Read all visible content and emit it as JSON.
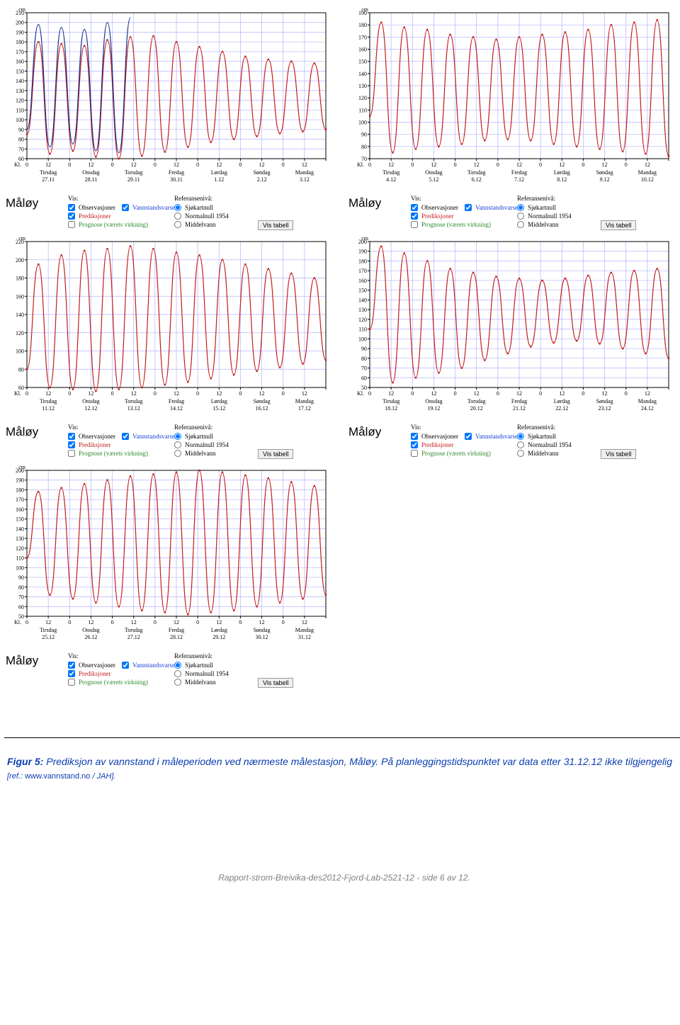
{
  "style": {
    "background_color": "#ffffff",
    "plot_background_color": "#ffffff",
    "grid_color": "#b3b3ff",
    "grid_stroke": 0.7,
    "axis_color": "#000000",
    "axis_stroke": 1.0,
    "series_pred_color": "#c41c1c",
    "series_obs_color": "#16338f",
    "series_stroke": 1.2,
    "marker_color": "#c41c1c",
    "marker_size": 2,
    "ylabel_fontsize": 8,
    "xlabel_fontsize": 8,
    "unit_label": "cm",
    "xaxis_prefix": "Kl.",
    "xaxis_tick_labels": [
      "0",
      "12",
      "0",
      "12",
      "0",
      "12",
      "0",
      "12",
      "0",
      "12",
      "0",
      "12",
      "0",
      "12"
    ]
  },
  "controls": {
    "vis_header": "Vis:",
    "ref_header": "Referansenivå:",
    "observasjoner": "Observasjoner",
    "vannstandsvarsel": "Vannstandsvarsel",
    "prediksjoner": "Prediksjoner",
    "prognose": "Prognose (værets virkning)",
    "sjokartnull": "Sjøkartnull",
    "normalnull": "Normalnull 1954",
    "middelvann": "Middelvann",
    "button": "Vis tabell",
    "obs_checked": true,
    "vann_checked": true,
    "pred_checked": true,
    "prog_checked": false,
    "ref_selected": "sjokartnull"
  },
  "station": "Måløy",
  "panels": [
    {
      "id": "p1",
      "ylim": [
        60,
        210
      ],
      "ytick_step": 10,
      "days": [
        {
          "w": "Tirsdag",
          "d": "27.11"
        },
        {
          "w": "Onsdag",
          "d": "28.11"
        },
        {
          "w": "Torsdag",
          "d": "29.11"
        },
        {
          "w": "Fredag",
          "d": "30.11"
        },
        {
          "w": "Lørdag",
          "d": "1.12"
        },
        {
          "w": "Søndag",
          "d": "2.12"
        },
        {
          "w": "Mandag",
          "d": "3.12"
        }
      ],
      "series_pred": [
        85,
        180,
        65,
        178,
        68,
        176,
        62,
        182,
        60,
        185,
        63,
        186,
        67,
        180,
        72,
        175,
        77,
        170,
        80,
        165,
        83,
        162,
        86,
        160,
        88,
        158,
        90
      ],
      "series_obs": [
        90,
        198,
        72,
        195,
        75,
        193,
        68,
        200,
        66,
        205
      ],
      "obs_extent": 8
    },
    {
      "id": "p2",
      "ylim": [
        70,
        190
      ],
      "ytick_step": 10,
      "days": [
        {
          "w": "Tirsdag",
          "d": "4.12"
        },
        {
          "w": "Onsdag",
          "d": "5.12"
        },
        {
          "w": "Torsdag",
          "d": "6.12"
        },
        {
          "w": "Fredag",
          "d": "7.12"
        },
        {
          "w": "Lørdag",
          "d": "8.12"
        },
        {
          "w": "Søndag",
          "d": "9.12"
        },
        {
          "w": "Mandag",
          "d": "10.12"
        }
      ],
      "series_pred": [
        105,
        182,
        75,
        178,
        78,
        176,
        80,
        172,
        82,
        170,
        85,
        168,
        86,
        170,
        85,
        172,
        82,
        174,
        80,
        176,
        78,
        180,
        76,
        182,
        74,
        184,
        72
      ],
      "series_obs": [],
      "obs_extent": 0
    },
    {
      "id": "p3",
      "ylim": [
        60,
        220
      ],
      "ytick_step": 20,
      "days": [
        {
          "w": "Tirsdag",
          "d": "11.12"
        },
        {
          "w": "Onsdag",
          "d": "12.12"
        },
        {
          "w": "Torsdag",
          "d": "13.12"
        },
        {
          "w": "Fredag",
          "d": "14.12"
        },
        {
          "w": "Lørdag",
          "d": "15.12"
        },
        {
          "w": "Søndag",
          "d": "16.12"
        },
        {
          "w": "Mandag",
          "d": "17.12"
        }
      ],
      "series_pred": [
        80,
        195,
        60,
        205,
        58,
        210,
        56,
        212,
        58,
        215,
        60,
        212,
        63,
        208,
        66,
        205,
        70,
        200,
        74,
        195,
        78,
        190,
        82,
        185,
        86,
        180,
        90
      ],
      "series_obs": [],
      "obs_extent": 0
    },
    {
      "id": "p4",
      "ylim": [
        50,
        200
      ],
      "ytick_step": 10,
      "days": [
        {
          "w": "Tirsdag",
          "d": "18.12"
        },
        {
          "w": "Onsdag",
          "d": "19.12"
        },
        {
          "w": "Torsdag",
          "d": "20.12"
        },
        {
          "w": "Fredag",
          "d": "21.12"
        },
        {
          "w": "Lørdag",
          "d": "22.12"
        },
        {
          "w": "Søndag",
          "d": "23.12"
        },
        {
          "w": "Mandag",
          "d": "24.12"
        }
      ],
      "series_pred": [
        110,
        195,
        55,
        188,
        60,
        180,
        65,
        172,
        70,
        168,
        78,
        164,
        85,
        162,
        92,
        160,
        96,
        162,
        98,
        165,
        95,
        168,
        90,
        170,
        85,
        172,
        80
      ],
      "series_obs": [],
      "obs_extent": 0
    },
    {
      "id": "p5",
      "ylim": [
        50,
        200
      ],
      "ytick_step": 10,
      "days": [
        {
          "w": "Tirsdag",
          "d": "25.12"
        },
        {
          "w": "Onsdag",
          "d": "26.12"
        },
        {
          "w": "Torsdag",
          "d": "27.12"
        },
        {
          "w": "Fredag",
          "d": "28.12"
        },
        {
          "w": "Lørdag",
          "d": "29.12"
        },
        {
          "w": "Søndag",
          "d": "30.12"
        },
        {
          "w": "Mandag",
          "d": "31.12"
        }
      ],
      "series_pred": [
        110,
        178,
        72,
        182,
        68,
        186,
        64,
        190,
        60,
        194,
        56,
        196,
        54,
        198,
        52,
        200,
        54,
        198,
        56,
        195,
        60,
        192,
        64,
        188,
        68,
        184,
        72
      ],
      "series_obs": [],
      "obs_extent": 0
    }
  ],
  "caption": {
    "label": "Figur 5:",
    "body": "Prediksjon av vannstand i måleperioden ved nærmeste målestasjon, Måløy. På planleggingstidspunktet var data etter 31.12.12 ikke tilgjengelig",
    "ref_open": "[ref.: ",
    "ref_url": "www.vannstand.no",
    "ref_close": " / JAH]."
  },
  "footer": "Rapport-strom-Breivika-des2012-Fjord-Lab-2521-12 - side 6 av 12."
}
